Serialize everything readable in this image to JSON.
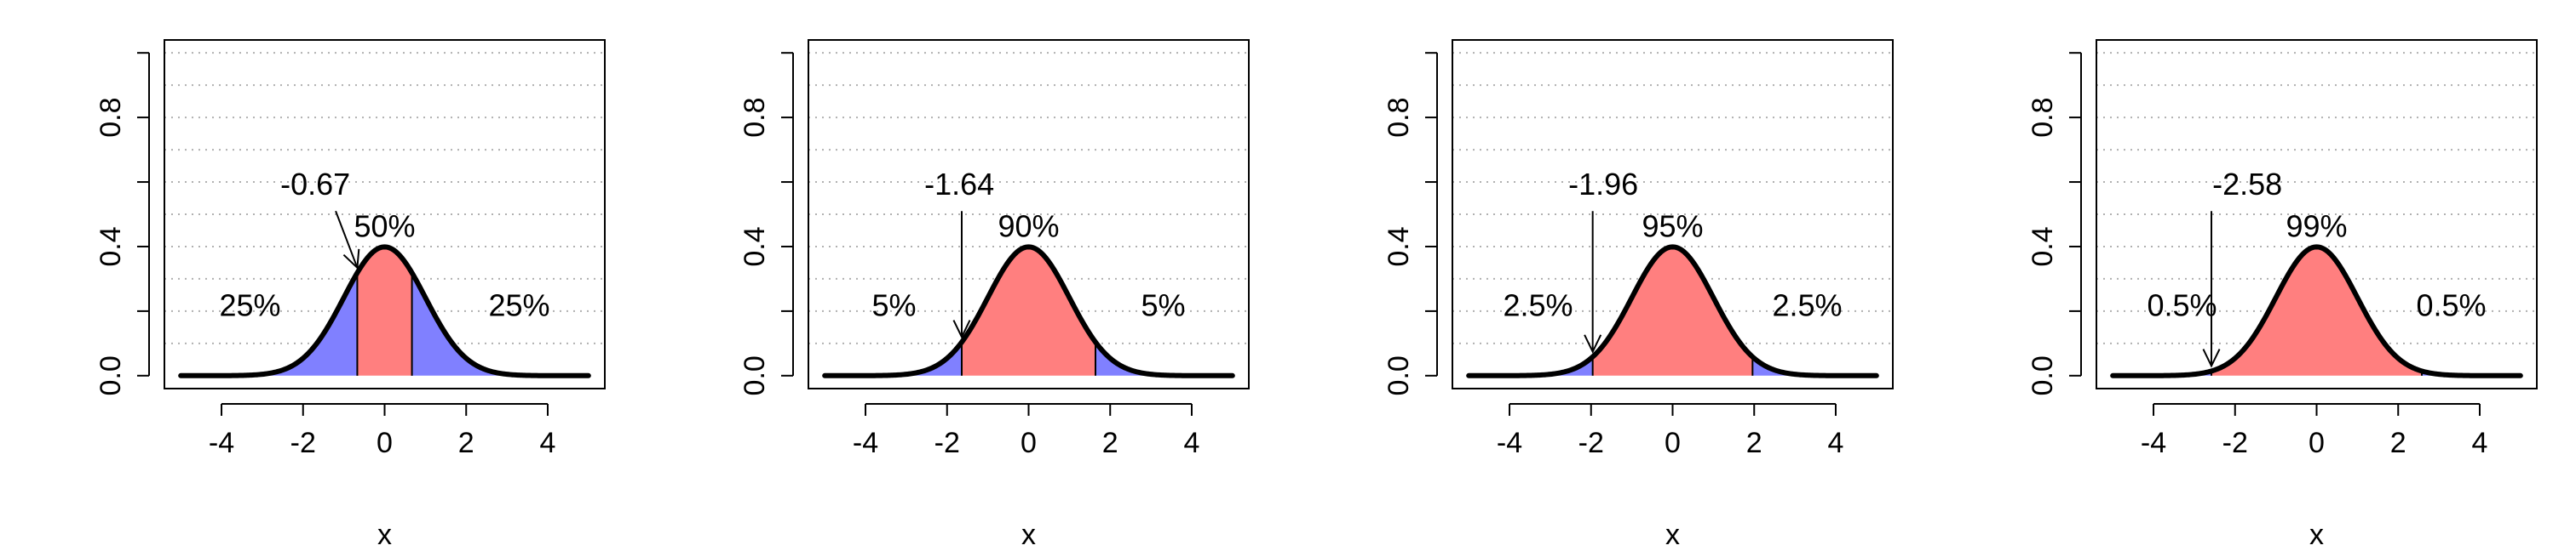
{
  "colors": {
    "center_fill": "#ff7f7f",
    "tail_fill": "#8080ff",
    "curve": "#000000",
    "grid": "#b0b0b0"
  },
  "chart_data": [
    {
      "type": "area",
      "xlabel": "x",
      "ylabel": "",
      "xlim": [
        -5,
        5
      ],
      "ylim": [
        0,
        1
      ],
      "x_ticks": [
        "-4",
        "-2",
        "0",
        "2",
        "4"
      ],
      "y_ticks": [
        "0.0",
        "0.4",
        "0.8"
      ],
      "y_grid": [
        0.1,
        0.2,
        0.3,
        0.4,
        0.5,
        0.6,
        0.7,
        0.8,
        0.9,
        1.0
      ],
      "curve": "standard normal density",
      "cutoff": 0.67,
      "cutoff_label": "-0.67",
      "center_label": "50%",
      "left_tail_label": "25%",
      "right_tail_label": "25%"
    },
    {
      "type": "area",
      "xlabel": "x",
      "ylabel": "",
      "xlim": [
        -5,
        5
      ],
      "ylim": [
        0,
        1
      ],
      "x_ticks": [
        "-4",
        "-2",
        "0",
        "2",
        "4"
      ],
      "y_ticks": [
        "0.0",
        "0.4",
        "0.8"
      ],
      "y_grid": [
        0.1,
        0.2,
        0.3,
        0.4,
        0.5,
        0.6,
        0.7,
        0.8,
        0.9,
        1.0
      ],
      "curve": "standard normal density",
      "cutoff": 1.64,
      "cutoff_label": "-1.64",
      "center_label": "90%",
      "left_tail_label": "5%",
      "right_tail_label": "5%"
    },
    {
      "type": "area",
      "xlabel": "x",
      "ylabel": "",
      "xlim": [
        -5,
        5
      ],
      "ylim": [
        0,
        1
      ],
      "x_ticks": [
        "-4",
        "-2",
        "0",
        "2",
        "4"
      ],
      "y_ticks": [
        "0.0",
        "0.4",
        "0.8"
      ],
      "y_grid": [
        0.1,
        0.2,
        0.3,
        0.4,
        0.5,
        0.6,
        0.7,
        0.8,
        0.9,
        1.0
      ],
      "curve": "standard normal density",
      "cutoff": 1.96,
      "cutoff_label": "-1.96",
      "center_label": "95%",
      "left_tail_label": "2.5%",
      "right_tail_label": "2.5%"
    },
    {
      "type": "area",
      "xlabel": "x",
      "ylabel": "",
      "xlim": [
        -5,
        5
      ],
      "ylim": [
        0,
        1
      ],
      "x_ticks": [
        "-4",
        "-2",
        "0",
        "2",
        "4"
      ],
      "y_ticks": [
        "0.0",
        "0.4",
        "0.8"
      ],
      "y_grid": [
        0.1,
        0.2,
        0.3,
        0.4,
        0.5,
        0.6,
        0.7,
        0.8,
        0.9,
        1.0
      ],
      "curve": "standard normal density",
      "cutoff": 2.58,
      "cutoff_label": "-2.58",
      "center_label": "99%",
      "left_tail_label": "0.5%",
      "right_tail_label": "0.5%"
    }
  ]
}
